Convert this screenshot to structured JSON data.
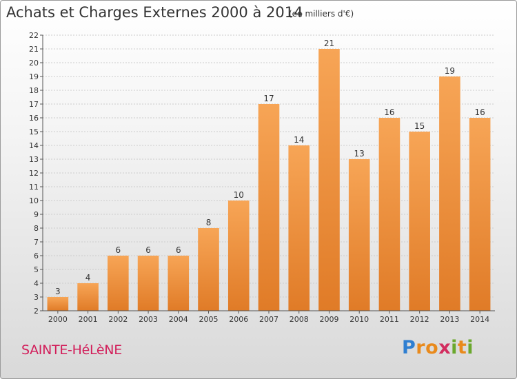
{
  "title": "Achats et Charges Externes 2000 à 2014",
  "subtitle": "(en milliers d'€)",
  "location": "SAINTE-HéLèNE",
  "logo": {
    "text": "Proxiti",
    "letters": [
      {
        "ch": "P",
        "color": "#2f7fd1"
      },
      {
        "ch": "r",
        "color": "#e98a1c"
      },
      {
        "ch": "o",
        "color": "#e98a1c"
      },
      {
        "ch": "x",
        "color": "#d22d5f"
      },
      {
        "ch": "i",
        "color": "#6aa82d"
      },
      {
        "ch": "t",
        "color": "#e98a1c"
      },
      {
        "ch": "i",
        "color": "#6aa82d"
      }
    ]
  },
  "colors": {
    "bar_light": "#f7a556",
    "bar_dark": "#e07b27",
    "grid": "#cccccc",
    "axis": "#555555"
  },
  "chart_data": {
    "type": "bar",
    "categories": [
      "2000",
      "2001",
      "2002",
      "2003",
      "2004",
      "2005",
      "2006",
      "2007",
      "2008",
      "2009",
      "2010",
      "2011",
      "2012",
      "2013",
      "2014"
    ],
    "values": [
      3,
      4,
      6,
      6,
      6,
      8,
      10,
      17,
      14,
      21,
      13,
      16,
      15,
      19,
      16
    ],
    "ylim": [
      2,
      22
    ],
    "yticks": [
      2,
      3,
      4,
      5,
      6,
      7,
      8,
      9,
      10,
      11,
      12,
      13,
      14,
      15,
      16,
      17,
      18,
      19,
      20,
      21,
      22
    ],
    "grid": true,
    "data_labels": true
  }
}
